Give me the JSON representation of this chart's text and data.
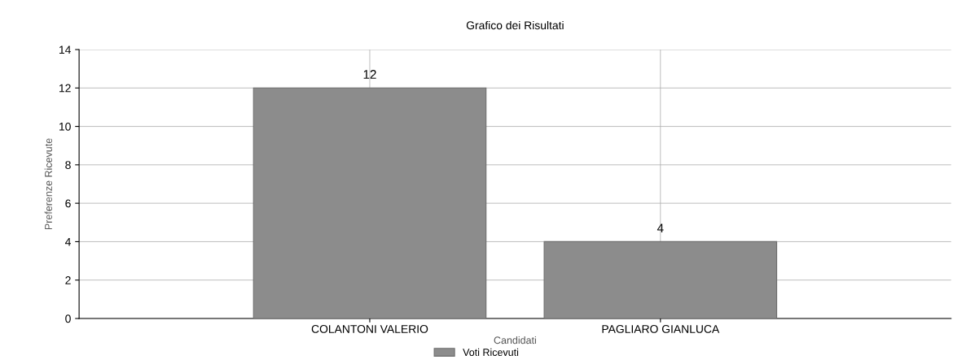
{
  "chart_data": {
    "type": "bar",
    "title": "Grafico dei Risultati",
    "xlabel": "Candidati",
    "ylabel": "Preferenze Ricevute",
    "categories": [
      "COLANTONI VALERIO",
      "PAGLIARO GIANLUCA"
    ],
    "series": [
      {
        "name": "Voti Ricevuti",
        "color": "#8c8c8c",
        "values": [
          12,
          4
        ]
      }
    ],
    "ylim": [
      0,
      14
    ],
    "yticks": [
      0,
      2,
      4,
      6,
      8,
      10,
      12,
      14
    ],
    "grid": true,
    "legend": "bottom",
    "data_labels": true
  }
}
